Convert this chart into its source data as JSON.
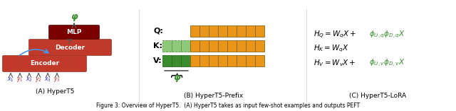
{
  "bg_color": "#ffffff",
  "encoder_color": "#c0392b",
  "decoder_color": "#c0392b",
  "mlp_color": "#7b0000",
  "orange_color": "#e8951a",
  "green_color": "#3a8c2f",
  "light_green_color": "#8ec97a",
  "arrow_color": "#555555",
  "blue_arrow_color": "#4499ee",
  "phi_color": "#3a8c2f",
  "caption_a": "(A) HyperT5",
  "caption_b": "(B) HyperT5-Prefix",
  "caption_c": "(C) HyperT5-LoRA",
  "figure_caption": "Figure 3: Overview of HyperT5.  (A) HyperT5 takes as input few-shot examples and outputs PEFT"
}
